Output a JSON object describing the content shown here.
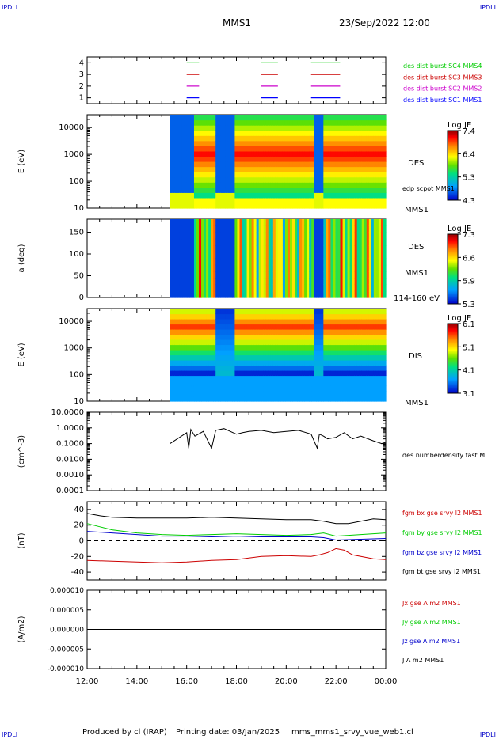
{
  "header": {
    "corner_tl": "IPDLI",
    "corner_tr": "IPDLI",
    "corner_bl": "IPDLI",
    "corner_br": "IPDLI",
    "spacecraft": "MMS1",
    "datetime": "23/Sep/2022 12:00"
  },
  "footer": {
    "produced_by": "Produced by cl (IRAP)",
    "printing_date": "Printing date: 03/Jan/2025",
    "filename": "mms_mms1_srvy_vue_web1.cl"
  },
  "colors": {
    "ch1": "#0000ff",
    "ch2": "#cc00cc",
    "ch3": "#cc0000",
    "ch4": "#00cc00",
    "bx": "#cc0000",
    "by": "#00cc00",
    "bz": "#0000cc",
    "bt": "#000000"
  },
  "chart_data": [
    {
      "id": "burst",
      "type": "line",
      "ylabel": "",
      "ylim": [
        0.5,
        4.5
      ],
      "yticks": [
        "1",
        "2",
        "3",
        "4"
      ],
      "series": [
        {
          "name": "des dist burst SC1 MMS1",
          "level": 1,
          "color": "#0000ff",
          "intervals": [
            [
              "16:00",
              "16:30"
            ],
            [
              "19:00",
              "19:40"
            ],
            [
              "21:00",
              "22:10"
            ]
          ]
        },
        {
          "name": "des dist burst SC2 MMS2",
          "level": 2,
          "color": "#cc00cc",
          "intervals": [
            [
              "16:00",
              "16:30"
            ],
            [
              "19:00",
              "19:40"
            ],
            [
              "21:00",
              "22:10"
            ]
          ]
        },
        {
          "name": "des dist burst SC3 MMS3",
          "level": 3,
          "color": "#cc0000",
          "intervals": [
            [
              "16:00",
              "16:30"
            ],
            [
              "19:00",
              "19:40"
            ],
            [
              "21:00",
              "22:10"
            ]
          ]
        },
        {
          "name": "des dist burst SC4 MMS4",
          "level": 4,
          "color": "#00cc00",
          "intervals": [
            [
              "16:00",
              "16:30"
            ],
            [
              "19:00",
              "19:40"
            ],
            [
              "21:00",
              "22:10"
            ]
          ]
        }
      ]
    },
    {
      "id": "des_energy",
      "type": "heatmap",
      "ylabel": "E (eV)",
      "yscale": "log",
      "ylim": [
        10,
        30000
      ],
      "yticks": [
        "10",
        "100",
        "1000",
        "10000"
      ],
      "data_start": "15:20",
      "instrument_label": "DES",
      "extra_label": "edp scpot MMS1",
      "sc_label": "MMS1",
      "colorbar": {
        "title": "Log JE",
        "ticks": [
          "7.4",
          "6.4",
          "5.3",
          "4.3"
        ]
      }
    },
    {
      "id": "des_pitch",
      "type": "heatmap",
      "ylabel": "a (deg)",
      "ylim": [
        0,
        180
      ],
      "yticks": [
        "0",
        "50",
        "100",
        "150"
      ],
      "data_start": "15:20",
      "instrument_label": "DES",
      "sc_label": "MMS1",
      "energy_label": "114-160 eV",
      "colorbar": {
        "title": "Log JE",
        "ticks": [
          "7.3",
          "6.6",
          "5.9",
          "5.3"
        ]
      }
    },
    {
      "id": "dis_energy",
      "type": "heatmap",
      "ylabel": "E (eV)",
      "yscale": "log",
      "ylim": [
        10,
        30000
      ],
      "yticks": [
        "10",
        "100",
        "1000",
        "10000"
      ],
      "data_start": "15:20",
      "instrument_label": "DIS",
      "sc_label": "MMS1",
      "colorbar": {
        "title": "Log JE",
        "ticks": [
          "6.1",
          "5.1",
          "4.1",
          "3.1"
        ]
      }
    },
    {
      "id": "density",
      "type": "line",
      "ylabel": "(cm^-3)",
      "yscale": "log",
      "ylim": [
        0.0001,
        10
      ],
      "yticks": [
        "0.0001",
        "0.0010",
        "0.0100",
        "0.1000",
        "1.0000",
        "10.0000"
      ],
      "series": [
        {
          "name": "des numberdensity fast M",
          "color": "#000000",
          "x": [
            "15:20",
            "16:00",
            "16:05",
            "16:10",
            "16:20",
            "16:40",
            "17:00",
            "17:10",
            "17:30",
            "17:45",
            "18:00",
            "18:15",
            "18:30",
            "19:00",
            "19:30",
            "20:00",
            "20:30",
            "21:00",
            "21:15",
            "21:20",
            "21:30",
            "21:40",
            "22:00",
            "22:20",
            "22:40",
            "23:00",
            "23:30",
            "23:50",
            "00:00"
          ],
          "y": [
            0.1,
            0.5,
            0.05,
            0.8,
            0.3,
            0.6,
            0.05,
            0.7,
            0.9,
            0.6,
            0.4,
            0.5,
            0.6,
            0.7,
            0.5,
            0.6,
            0.7,
            0.4,
            0.05,
            0.4,
            0.3,
            0.2,
            0.25,
            0.5,
            0.2,
            0.3,
            0.15,
            0.1,
            0.12
          ]
        }
      ]
    },
    {
      "id": "bfield",
      "type": "line",
      "ylabel": "(nT)",
      "ylim": [
        -50,
        50
      ],
      "yticks": [
        "-40",
        "-20",
        "0",
        "20",
        "40"
      ],
      "series": [
        {
          "name": "fgm bx gse srvy l2 MMS1",
          "color": "#cc0000",
          "x": [
            "12:00",
            "13:00",
            "14:00",
            "15:00",
            "16:00",
            "17:00",
            "18:00",
            "19:00",
            "20:00",
            "21:00",
            "21:20",
            "21:40",
            "22:00",
            "22:20",
            "22:40",
            "23:00",
            "23:30",
            "00:00"
          ],
          "y": [
            -25,
            -26,
            -27,
            -28,
            -27,
            -25,
            -24,
            -20,
            -19,
            -20,
            -18,
            -15,
            -10,
            -12,
            -18,
            -20,
            -23,
            -24
          ]
        },
        {
          "name": "fgm by gse srvy l2 MMS1",
          "color": "#00cc00",
          "x": [
            "12:00",
            "12:30",
            "13:00",
            "14:00",
            "15:00",
            "16:00",
            "17:00",
            "18:00",
            "19:00",
            "20:00",
            "21:00",
            "21:30",
            "22:00",
            "23:00",
            "00:00"
          ],
          "y": [
            22,
            18,
            14,
            10,
            8,
            7,
            8,
            9,
            8,
            7,
            8,
            10,
            6,
            8,
            10
          ]
        },
        {
          "name": "fgm bz gse srvy l2 MMS1",
          "color": "#0000cc",
          "x": [
            "12:00",
            "13:00",
            "14:00",
            "15:00",
            "16:00",
            "17:00",
            "18:00",
            "19:00",
            "20:00",
            "21:00",
            "21:30",
            "22:00",
            "23:00",
            "00:00"
          ],
          "y": [
            12,
            10,
            8,
            6,
            6,
            5,
            6,
            5,
            5,
            5,
            4,
            1,
            2,
            3
          ]
        },
        {
          "name": "fgm bt gse srvy l2 MMS1",
          "color": "#000000",
          "x": [
            "12:00",
            "12:30",
            "13:00",
            "14:00",
            "15:00",
            "16:00",
            "17:00",
            "18:00",
            "19:00",
            "20:00",
            "21:00",
            "21:30",
            "22:00",
            "22:30",
            "23:00",
            "23:30",
            "00:00"
          ],
          "y": [
            35,
            32,
            30,
            29,
            29,
            29,
            30,
            29,
            28,
            27,
            27,
            25,
            22,
            22,
            25,
            28,
            27
          ]
        }
      ]
    },
    {
      "id": "current",
      "type": "line",
      "ylabel": "(A/m2)",
      "ylim": [
        -1e-05,
        1e-05
      ],
      "yticks": [
        "-0.000010",
        "-0.000005",
        "0.000000",
        "0.000005",
        "0.000010"
      ],
      "series": [
        {
          "name": "Jx gse A m2 MMS1",
          "color": "#cc0000",
          "x": [
            "12:00",
            "00:00"
          ],
          "y": [
            0,
            0
          ]
        },
        {
          "name": "Jy gse A m2 MMS1",
          "color": "#00cc00",
          "x": [
            "12:00",
            "00:00"
          ],
          "y": [
            0,
            0
          ]
        },
        {
          "name": "Jz gse A m2 MMS1",
          "color": "#0000cc",
          "x": [
            "12:00",
            "00:00"
          ],
          "y": [
            0,
            0
          ]
        },
        {
          "name": "J A m2 MMS1",
          "color": "#000000",
          "x": [
            "12:00",
            "00:00"
          ],
          "y": [
            0,
            0
          ]
        }
      ]
    }
  ],
  "xaxis": {
    "ticks": [
      "12:00",
      "14:00",
      "16:00",
      "18:00",
      "20:00",
      "22:00",
      "00:00"
    ]
  }
}
